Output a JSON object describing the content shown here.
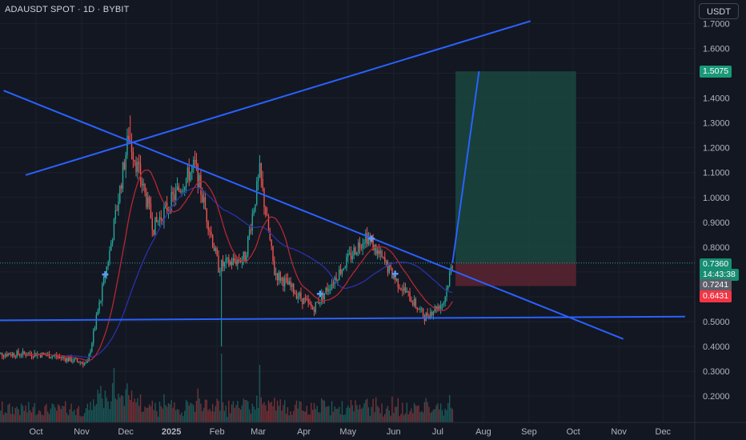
{
  "header": {
    "title": "ADAUSDT SPOT · 1D · BYBIT"
  },
  "currency_button": {
    "label": "USDT"
  },
  "price_labels": {
    "target": {
      "value": "1.5075",
      "color": "#1a9979"
    },
    "current": {
      "value": "0.7360",
      "color": "#178d72"
    },
    "countdown": {
      "value": "14:43:38",
      "color": "#178d72"
    },
    "ma": {
      "value": "0.7241",
      "color": "#5d606b"
    },
    "stop": {
      "value": "0.6431",
      "color": "#f23645"
    }
  },
  "colors": {
    "background": "#131722",
    "trendline": "#2962ff",
    "up_candle": "#26a69a",
    "down_candle": "#ef5350",
    "ma_fast": "#b22833",
    "ma_slow": "#2a31a8",
    "profit_zone": "#1b4d43",
    "loss_zone": "#5c2330"
  },
  "chart_data": {
    "type": "candlestick",
    "symbol": "ADAUSDT SPOT",
    "interval": "1D",
    "exchange": "BYBIT",
    "y_ticks": [
      "1.7000",
      "1.6000",
      "1.5000",
      "1.4000",
      "1.3000",
      "1.2000",
      "1.1000",
      "1.0000",
      "0.9000",
      "0.8000",
      "0.7000",
      "0.6000",
      "0.5000",
      "0.4000",
      "0.3000",
      "0.2000"
    ],
    "x_ticks": [
      "Oct",
      "Nov",
      "Dec",
      "2025",
      "Feb",
      "Mar",
      "Apr",
      "May",
      "Jun",
      "Jul",
      "Aug",
      "Sep",
      "Oct",
      "Nov",
      "Dec"
    ],
    "ylim": [
      0.13,
      1.73
    ],
    "xlim_days": [
      -15,
      445
    ],
    "tick_day": [
      0,
      31,
      61,
      92,
      123,
      151,
      182,
      212,
      243,
      273,
      304,
      335,
      365,
      396,
      426
    ],
    "key_points": [
      [
        "2024-10-01",
        0.37
      ],
      [
        "2024-10-15",
        0.36
      ],
      [
        "2024-11-05",
        0.33
      ],
      [
        "2024-11-20",
        0.78
      ],
      [
        "2024-12-03",
        1.25
      ],
      [
        "2024-12-20",
        0.88
      ],
      [
        "2025-01-17",
        1.13
      ],
      [
        "2025-02-02",
        0.72
      ],
      [
        "2025-02-20",
        0.76
      ],
      [
        "2025-03-02",
        1.1
      ],
      [
        "2025-03-12",
        0.7
      ],
      [
        "2025-04-07",
        0.55
      ],
      [
        "2025-04-25",
        0.7
      ],
      [
        "2025-05-13",
        0.85
      ],
      [
        "2025-06-01",
        0.68
      ],
      [
        "2025-06-22",
        0.52
      ],
      [
        "2025-07-05",
        0.58
      ],
      [
        "2025-07-11",
        0.74
      ]
    ],
    "position": {
      "entry": 0.736,
      "target": 1.5075,
      "stop": 0.6431
    },
    "trendlines": [
      {
        "name": "upper-rising",
        "from": [
          "2024-09-24",
          1.09
        ],
        "to": [
          "2025-09-02",
          1.71
        ]
      },
      {
        "name": "descending",
        "from": [
          "2024-09-09",
          1.43
        ],
        "to": [
          "2025-11-04",
          0.43
        ]
      },
      {
        "name": "support",
        "from": [
          "2024-09-04",
          0.505
        ],
        "to": [
          "2025-12-16",
          0.52
        ]
      }
    ]
  }
}
